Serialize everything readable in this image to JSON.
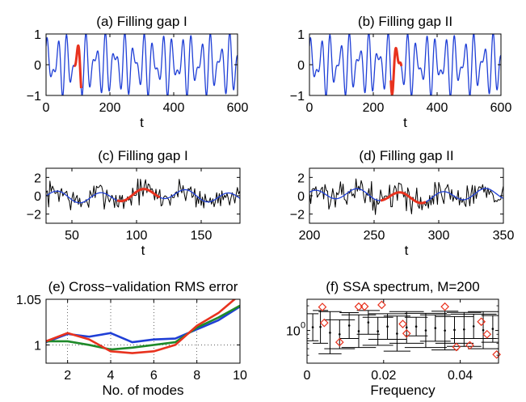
{
  "chart_data": [
    {
      "id": "a",
      "type": "line",
      "title": "(a) Filling gap I",
      "xlabel": "t",
      "xlim": [
        0,
        600
      ],
      "ylim": [
        -1,
        1
      ],
      "xticks": [
        0,
        200,
        400,
        600
      ],
      "yticks": [
        -1,
        0,
        1
      ],
      "ytick_labels": [
        "−1",
        "0",
        "1"
      ],
      "grid": false,
      "series": [
        {
          "role": "signal",
          "color": "#1f3fd6",
          "formula": "sum of sines",
          "terms": [
            [
              0.62,
              30,
              0.3
            ],
            [
              0.45,
              20.5,
              1.2
            ]
          ],
          "x_range": [
            0,
            600
          ],
          "n": 700
        },
        {
          "role": "gap-fill",
          "color": "#e8321e",
          "formula": "sum of sines",
          "terms": [
            [
              0.62,
              30,
              0.3
            ],
            [
              0.45,
              20.5,
              1.2
            ]
          ],
          "x_range": [
            88,
            110
          ],
          "n": 60
        }
      ]
    },
    {
      "id": "b",
      "type": "line",
      "title": "(b) Filling gap II",
      "xlabel": "t",
      "xlim": [
        0,
        600
      ],
      "ylim": [
        -1,
        1
      ],
      "xticks": [
        0,
        200,
        400,
        600
      ],
      "yticks": [
        -1,
        0,
        1
      ],
      "ytick_labels": [
        "−1",
        "0",
        "1"
      ],
      "grid": false,
      "series": [
        {
          "role": "signal",
          "color": "#1f3fd6",
          "formula": "sum of sines",
          "terms": [
            [
              0.62,
              30,
              0.3
            ],
            [
              0.45,
              20.5,
              1.2
            ]
          ],
          "x_range": [
            0,
            600
          ],
          "n": 700
        },
        {
          "role": "gap-fill",
          "color": "#e8321e",
          "formula": "sum of sines",
          "terms": [
            [
              0.62,
              30,
              0.3
            ],
            [
              0.45,
              20.5,
              1.2
            ]
          ],
          "x_range": [
            255,
            288
          ],
          "n": 60
        }
      ]
    },
    {
      "id": "c",
      "type": "line",
      "title": "(c) Filling gap I",
      "xlabel": "t",
      "xlim": [
        30,
        180
      ],
      "ylim": [
        -3,
        3
      ],
      "xticks": [
        50,
        100,
        150
      ],
      "yticks": [
        -2,
        0,
        2
      ],
      "ytick_labels": [
        "−2",
        "0",
        "2"
      ],
      "grid": false,
      "series": [
        {
          "role": "noisy-data",
          "color": "#000000",
          "formula": "noisy",
          "x_range": [
            30,
            180
          ],
          "n": 151,
          "noise_amp": 1.05,
          "seed": 7
        },
        {
          "role": "smooth",
          "color": "#1f3fd6",
          "formula": "smooth",
          "x_range": [
            30,
            180
          ],
          "n": 300
        },
        {
          "role": "gap-fill",
          "color": "#e8321e",
          "formula": "smooth",
          "x_range": [
            85,
            118
          ],
          "n": 60
        }
      ]
    },
    {
      "id": "d",
      "type": "line",
      "title": "(d) Filling gap II",
      "xlabel": "t",
      "xlim": [
        200,
        350
      ],
      "ylim": [
        -3,
        3
      ],
      "xticks": [
        200,
        250,
        300,
        350
      ],
      "yticks": [
        -2,
        0,
        2
      ],
      "ytick_labels": [
        "−2",
        "0",
        "2"
      ],
      "grid": false,
      "series": [
        {
          "role": "noisy-data",
          "color": "#000000",
          "formula": "noisy",
          "x_range": [
            200,
            350
          ],
          "n": 151,
          "noise_amp": 1.05,
          "seed": 13
        },
        {
          "role": "smooth",
          "color": "#1f3fd6",
          "formula": "smooth",
          "x_range": [
            200,
            350
          ],
          "n": 300
        },
        {
          "role": "gap-fill",
          "color": "#e8321e",
          "formula": "smooth",
          "x_range": [
            255,
            290
          ],
          "n": 60
        }
      ]
    },
    {
      "id": "e",
      "type": "line",
      "title": "(e) Cross−validation RMS error",
      "xlabel": "No. of modes",
      "xlim": [
        1,
        10
      ],
      "ylim": [
        0.98,
        1.05
      ],
      "xticks": [
        2,
        4,
        6,
        8,
        10
      ],
      "yticks": [
        1,
        1.05
      ],
      "ytick_labels": [
        "1",
        "1.05"
      ],
      "grid": true,
      "series": [
        {
          "role": "cv-1",
          "color": "#1f3fd6",
          "x": [
            1,
            2,
            3,
            4,
            5,
            6,
            7,
            8,
            9,
            10
          ],
          "y": [
            1.003,
            1.012,
            1.009,
            1.013,
            1.003,
            1.006,
            1.007,
            1.017,
            1.027,
            1.042
          ]
        },
        {
          "role": "cv-2",
          "color": "#1f8a2a",
          "x": [
            1,
            2,
            3,
            4,
            5,
            6,
            7,
            8,
            9,
            10
          ],
          "y": [
            1.004,
            1.004,
            1.0,
            0.995,
            0.997,
            1.0,
            1.003,
            1.019,
            1.03,
            1.043
          ]
        },
        {
          "role": "cv-3",
          "color": "#e8321e",
          "x": [
            1,
            2,
            3,
            4,
            5,
            6,
            7,
            8,
            9,
            10
          ],
          "y": [
            1.004,
            1.013,
            1.006,
            0.993,
            0.991,
            0.993,
            1.0,
            1.021,
            1.035,
            1.055
          ]
        }
      ]
    },
    {
      "id": "f",
      "type": "scatter",
      "title": "(f) SSA spectrum, M=200",
      "xlabel": "Frequency",
      "xlim": [
        0,
        0.05
      ],
      "ylim": [
        0.4,
        2.4
      ],
      "yscale": "log",
      "xticks": [
        0,
        0.02,
        0.04
      ],
      "xtick_labels": [
        "0",
        "0.02",
        "0.04"
      ],
      "yticks": [
        1
      ],
      "grid": false,
      "markers": [
        {
          "f": 0.004,
          "v": 1.93
        },
        {
          "f": 0.0045,
          "v": 1.24
        },
        {
          "f": 0.0085,
          "v": 0.72
        },
        {
          "f": 0.0135,
          "v": 1.95
        },
        {
          "f": 0.015,
          "v": 1.96
        },
        {
          "f": 0.0195,
          "v": 2.05
        },
        {
          "f": 0.025,
          "v": 1.2
        },
        {
          "f": 0.026,
          "v": 0.92
        },
        {
          "f": 0.036,
          "v": 1.95
        },
        {
          "f": 0.039,
          "v": 0.63
        },
        {
          "f": 0.0425,
          "v": 0.66
        },
        {
          "f": 0.0455,
          "v": 1.28
        },
        {
          "f": 0.047,
          "v": 0.9
        },
        {
          "f": 0.0495,
          "v": 0.51
        }
      ],
      "bar_color": "#000000",
      "marker_color": "#e8321e",
      "bars": [
        {
          "f": 0.0015,
          "lo": 0.75,
          "hi": 1.6,
          "w": 0.003
        },
        {
          "f": 0.0035,
          "lo": 0.7,
          "hi": 1.75,
          "w": 0.004
        },
        {
          "f": 0.006,
          "lo": 0.52,
          "hi": 1.7,
          "w": 0.006
        },
        {
          "f": 0.0085,
          "lo": 0.6,
          "hi": 1.35,
          "w": 0.008
        },
        {
          "f": 0.011,
          "lo": 0.8,
          "hi": 1.65,
          "w": 0.005
        },
        {
          "f": 0.0135,
          "lo": 0.62,
          "hi": 1.55,
          "w": 0.009
        },
        {
          "f": 0.016,
          "lo": 0.9,
          "hi": 1.75,
          "w": 0.006
        },
        {
          "f": 0.0185,
          "lo": 0.66,
          "hi": 1.45,
          "w": 0.008
        },
        {
          "f": 0.021,
          "lo": 0.78,
          "hi": 1.6,
          "w": 0.01
        },
        {
          "f": 0.0235,
          "lo": 0.56,
          "hi": 1.5,
          "w": 0.007
        },
        {
          "f": 0.026,
          "lo": 0.7,
          "hi": 1.7,
          "w": 0.009
        },
        {
          "f": 0.0285,
          "lo": 0.86,
          "hi": 1.45,
          "w": 0.006
        },
        {
          "f": 0.031,
          "lo": 0.62,
          "hi": 1.62,
          "w": 0.011
        },
        {
          "f": 0.0335,
          "lo": 0.74,
          "hi": 1.55,
          "w": 0.008
        },
        {
          "f": 0.036,
          "lo": 0.58,
          "hi": 1.72,
          "w": 0.007
        },
        {
          "f": 0.0385,
          "lo": 0.7,
          "hi": 1.48,
          "w": 0.01
        },
        {
          "f": 0.041,
          "lo": 0.64,
          "hi": 1.66,
          "w": 0.009
        },
        {
          "f": 0.0435,
          "lo": 0.8,
          "hi": 1.58,
          "w": 0.012
        },
        {
          "f": 0.046,
          "lo": 0.6,
          "hi": 1.7,
          "w": 0.008
        },
        {
          "f": 0.0485,
          "lo": 0.72,
          "hi": 1.52,
          "w": 0.006
        }
      ]
    }
  ]
}
